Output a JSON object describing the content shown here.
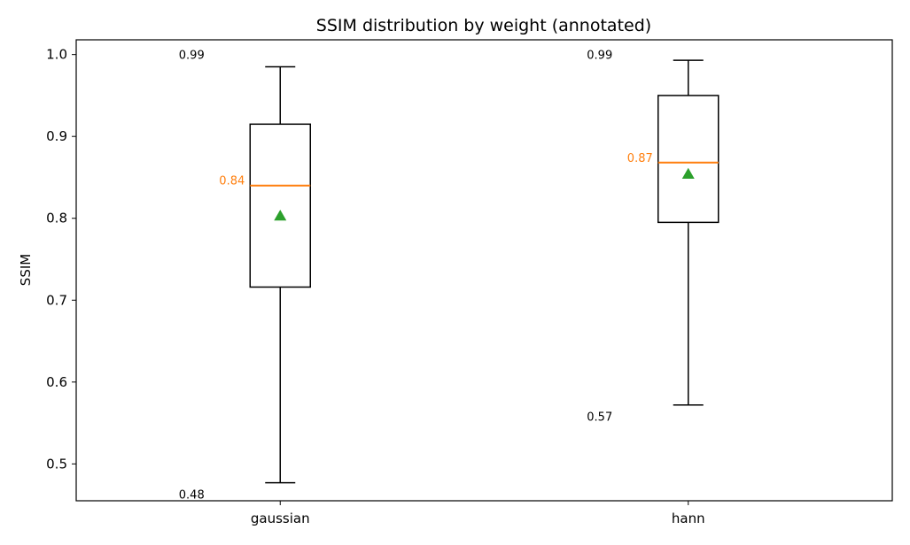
{
  "chart_data": {
    "type": "box",
    "title": "SSIM distribution by weight (annotated)",
    "xlabel": "",
    "ylabel": "SSIM",
    "ylim": [
      0.455,
      1.018
    ],
    "yticks": [
      0.5,
      0.6,
      0.7,
      0.8,
      0.9,
      1.0
    ],
    "ytick_labels": [
      "0.5",
      "0.6",
      "0.7",
      "0.8",
      "0.9",
      "1.0"
    ],
    "grid": false,
    "categories": [
      "gaussian",
      "hann"
    ],
    "boxes": [
      {
        "name": "gaussian",
        "whisker_low": 0.477,
        "q1": 0.716,
        "median": 0.84,
        "q3": 0.915,
        "whisker_high": 0.985,
        "mean": 0.803,
        "median_label": "0.84",
        "max_label": "0.99",
        "min_label": "0.48"
      },
      {
        "name": "hann",
        "whisker_low": 0.572,
        "q1": 0.795,
        "median": 0.868,
        "q3": 0.95,
        "whisker_high": 0.993,
        "mean": 0.854,
        "median_label": "0.87",
        "max_label": "0.99",
        "min_label": "0.57"
      }
    ],
    "colors": {
      "box": "#000000",
      "median": "#ff7f0e",
      "mean_marker": "#2ca02c",
      "annotation": "#000000"
    }
  }
}
